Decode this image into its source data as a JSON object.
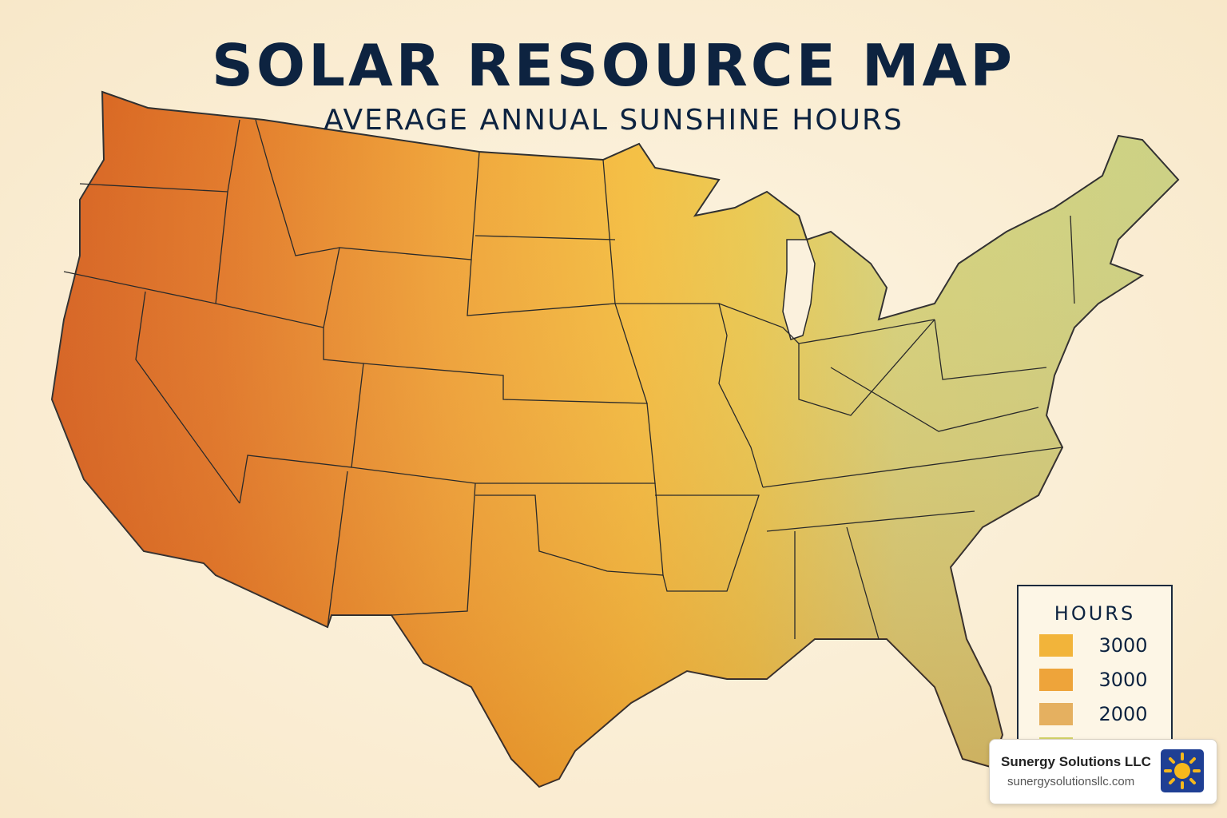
{
  "header": {
    "title": "SOLAR RESOURCE MAP",
    "subtitle": "AVERAGE ANNUAL SUNSHINE HOURS"
  },
  "legend": {
    "title": "HOURS",
    "items": [
      {
        "label": "3000",
        "color": "#f2b43a"
      },
      {
        "label": "3000",
        "color": "#eea43a"
      },
      {
        "label": "2000",
        "color": "#e5b060"
      },
      {
        "color": "#d4d46a"
      }
    ]
  },
  "brand": {
    "name": "Sunergy Solutions LLC",
    "url": "sunergysolutionsllc.com"
  }
}
